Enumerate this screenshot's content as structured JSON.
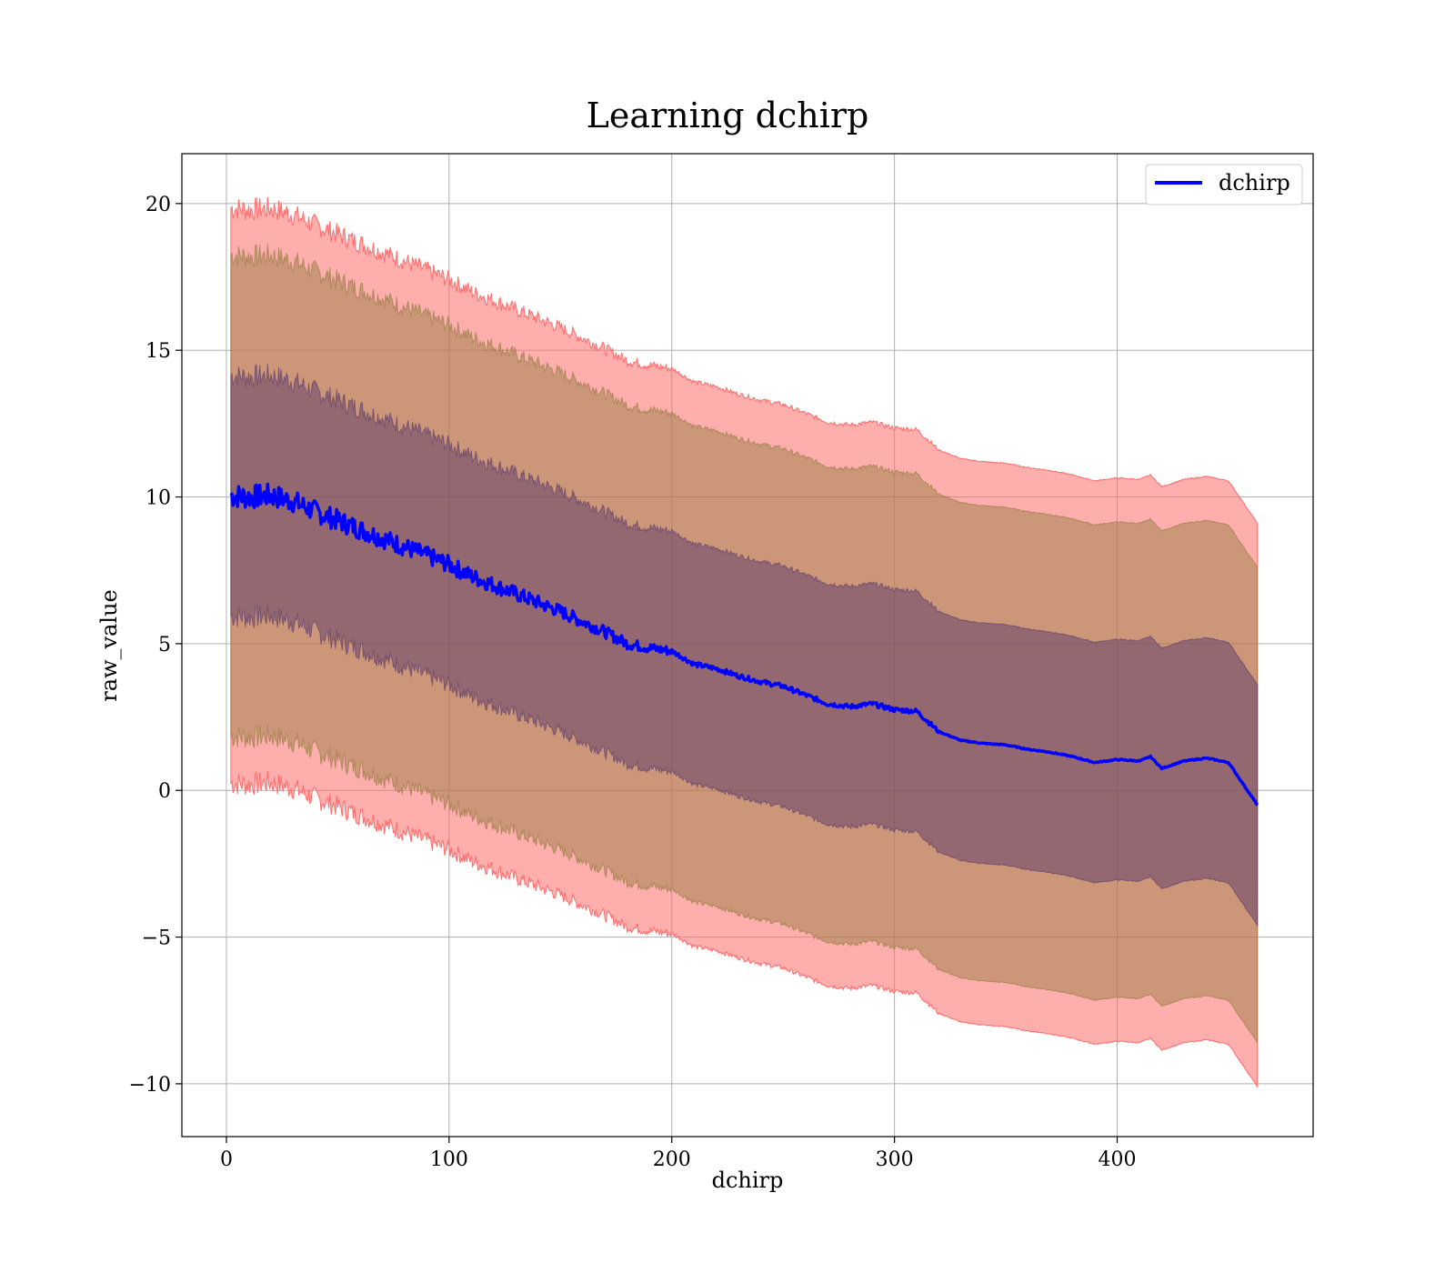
{
  "chart_data": {
    "type": "line",
    "title": "Learning dchirp",
    "xlabel": "dchirp",
    "ylabel": "raw_value",
    "xlim": [
      -20,
      488
    ],
    "ylim": [
      -11.8,
      21.7
    ],
    "xticks": [
      0,
      100,
      200,
      300,
      400
    ],
    "xtick_labels": [
      "0",
      "100",
      "200",
      "300",
      "400"
    ],
    "yticks": [
      -10,
      -5,
      0,
      5,
      10,
      15,
      20
    ],
    "ytick_labels": [
      "−10",
      "−5",
      "0",
      "5",
      "10",
      "15",
      "20"
    ],
    "grid": true,
    "legend": {
      "position": "top-right",
      "entries": [
        "dchirp"
      ]
    },
    "colors": {
      "line": "#0000ff",
      "band_outer": "#ff6b6b",
      "band_middle": "#8e7a3a",
      "band_inner": "#5a3a6a",
      "grid": "#b0b0b0"
    },
    "series": [
      {
        "name": "dchirp",
        "x": [
          2,
          10,
          20,
          30,
          40,
          50,
          60,
          70,
          80,
          90,
          100,
          110,
          120,
          130,
          140,
          150,
          160,
          170,
          180,
          190,
          200,
          210,
          220,
          230,
          240,
          250,
          260,
          270,
          280,
          290,
          300,
          310,
          320,
          330,
          340,
          350,
          360,
          370,
          380,
          390,
          400,
          410,
          415,
          420,
          430,
          440,
          450,
          463
        ],
        "y": [
          10.05,
          10.0,
          10.05,
          9.85,
          9.5,
          9.2,
          8.9,
          8.6,
          8.3,
          8.0,
          7.7,
          7.3,
          7.0,
          6.7,
          6.4,
          6.1,
          5.75,
          5.4,
          5.0,
          4.85,
          4.75,
          4.3,
          4.15,
          3.9,
          3.7,
          3.55,
          3.25,
          2.95,
          2.85,
          2.95,
          2.75,
          2.7,
          2.0,
          1.7,
          1.6,
          1.55,
          1.4,
          1.3,
          1.15,
          0.95,
          1.05,
          1.0,
          1.15,
          0.75,
          1.0,
          1.1,
          0.95,
          -0.5
        ]
      }
    ],
    "bands": {
      "outer_offset": [
        9.8,
        9.6,
        9.6
      ],
      "middle_offset": [
        8.2,
        8.1,
        8.1
      ],
      "inner_offset": [
        4.1,
        4.1,
        4.1
      ]
    }
  }
}
